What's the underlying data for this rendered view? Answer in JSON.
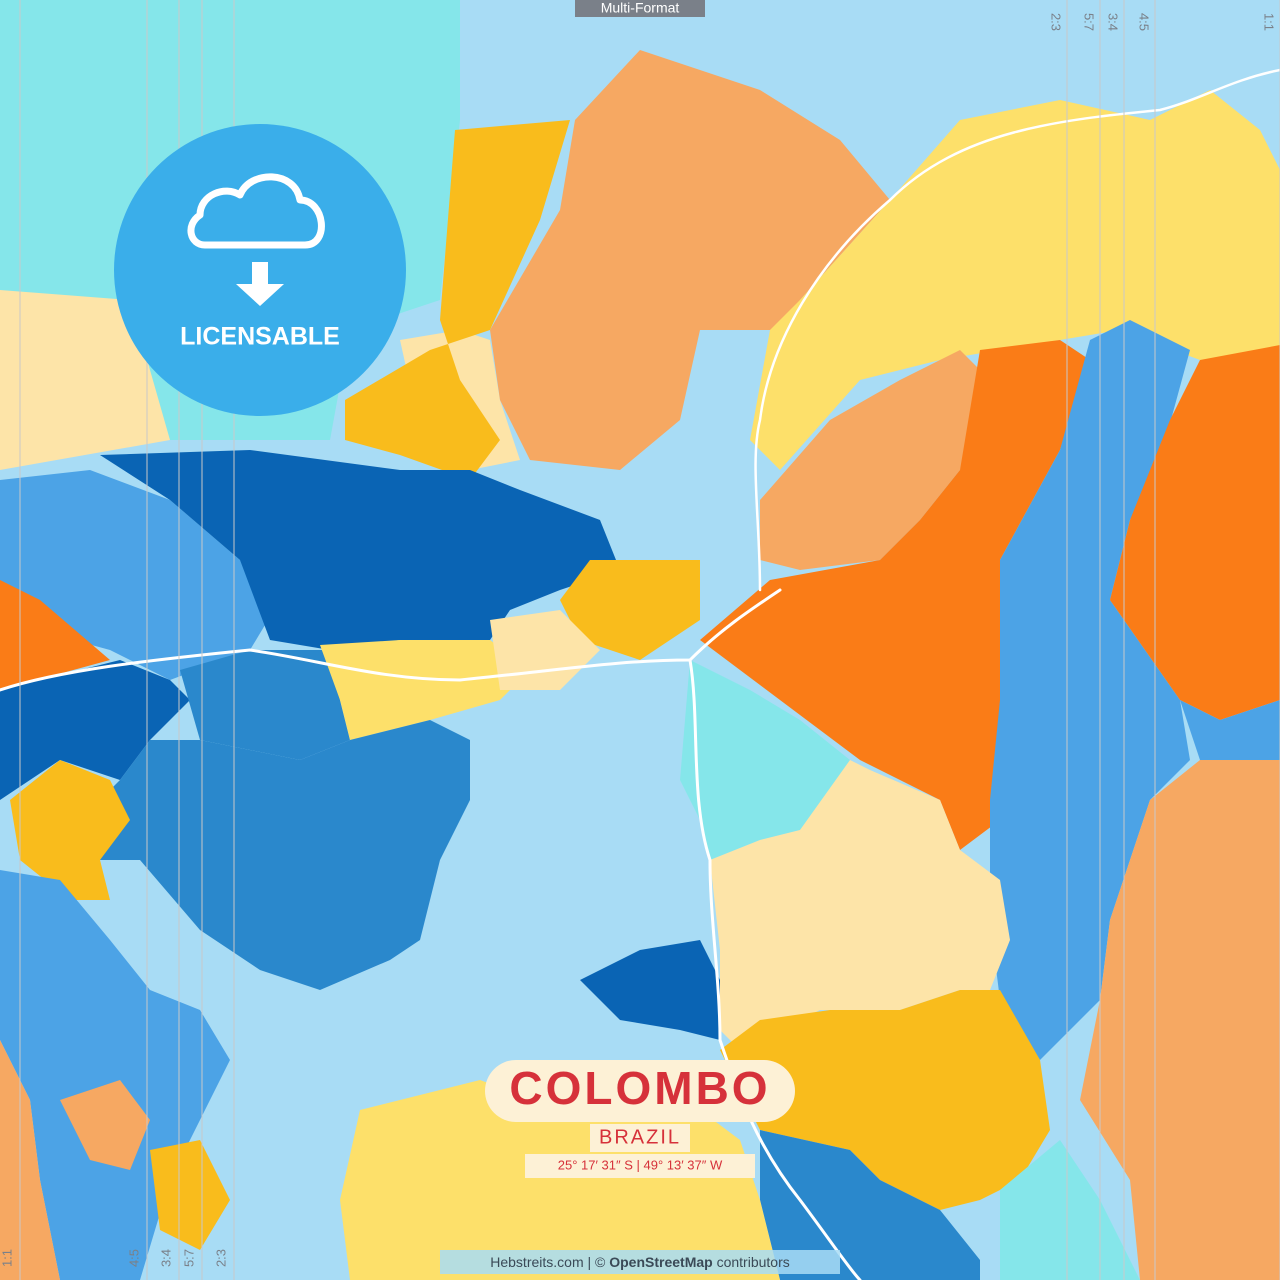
{
  "tag": "Multi-Format",
  "ratios_top": [
    "2:3",
    "5:7",
    "3:4",
    "4:5",
    "1:1"
  ],
  "ratios_bottom": [
    "1:1",
    "4:5",
    "3:4",
    "5:7",
    "2:3"
  ],
  "badge": {
    "label": "LICENSABLE"
  },
  "title": {
    "city": "COLOMBO",
    "country": "BRAZIL",
    "coordinates": "25° 17′ 31″ S | 49° 13′ 37″ W"
  },
  "footer": {
    "prefix": "Hebstreits.com | ©",
    "brand": "OpenStreetMap",
    "suffix": "contributors"
  }
}
